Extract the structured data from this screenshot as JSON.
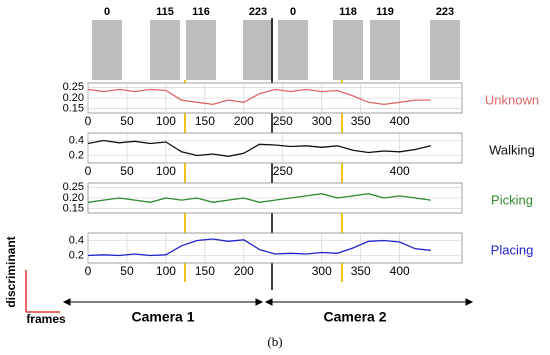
{
  "frame_numbers": [
    0,
    115,
    116,
    223,
    0,
    118,
    119,
    223
  ],
  "cameras": [
    "Camera 1",
    "Camera 2"
  ],
  "y_axis_label": "discriminant",
  "x_axis_label": "frames",
  "caption": "(b)",
  "chart_data": [
    {
      "type": "line",
      "name": "Unknown",
      "color": "#e06666",
      "x": [
        0,
        20,
        40,
        60,
        80,
        100,
        120,
        140,
        160,
        180,
        200,
        220,
        240,
        260,
        280,
        300,
        320,
        340,
        360,
        380,
        400,
        420,
        440
      ],
      "values": [
        0.24,
        0.23,
        0.24,
        0.23,
        0.24,
        0.235,
        0.19,
        0.18,
        0.17,
        0.19,
        0.18,
        0.22,
        0.24,
        0.23,
        0.24,
        0.23,
        0.235,
        0.21,
        0.18,
        0.17,
        0.18,
        0.19,
        0.19
      ],
      "xlim": [
        0,
        480
      ],
      "ylim": [
        0.13,
        0.27
      ],
      "yticks": [
        {
          "value": 0.15,
          "label": "0.15"
        },
        {
          "value": 0.2,
          "label": "0.20"
        },
        {
          "value": 0.25,
          "label": "0.25"
        }
      ],
      "xticks": [
        0,
        50,
        100,
        150,
        200,
        250,
        300,
        350,
        400
      ],
      "grid": true
    },
    {
      "type": "line",
      "name": "Walking",
      "color": "#111111",
      "x": [
        0,
        20,
        40,
        60,
        80,
        100,
        120,
        140,
        160,
        180,
        200,
        220,
        240,
        260,
        280,
        300,
        320,
        340,
        360,
        380,
        400,
        420,
        440
      ],
      "values": [
        0.36,
        0.4,
        0.37,
        0.39,
        0.36,
        0.38,
        0.25,
        0.2,
        0.22,
        0.19,
        0.23,
        0.35,
        0.34,
        0.32,
        0.33,
        0.31,
        0.33,
        0.27,
        0.24,
        0.26,
        0.25,
        0.28,
        0.33
      ],
      "xlim": [
        0,
        480
      ],
      "ylim": [
        0.1,
        0.5
      ],
      "yticks": [
        0.2,
        0.4
      ],
      "xticks": [
        0,
        50,
        100,
        250,
        400
      ],
      "grid": true
    },
    {
      "type": "line",
      "name": "Picking",
      "color": "#2e8b2e",
      "x": [
        0,
        20,
        40,
        60,
        80,
        100,
        120,
        140,
        160,
        180,
        200,
        220,
        240,
        260,
        280,
        300,
        320,
        340,
        360,
        380,
        400,
        420,
        440
      ],
      "values": [
        0.18,
        0.19,
        0.2,
        0.19,
        0.18,
        0.2,
        0.19,
        0.2,
        0.18,
        0.19,
        0.2,
        0.18,
        0.19,
        0.2,
        0.21,
        0.22,
        0.2,
        0.21,
        0.22,
        0.2,
        0.21,
        0.2,
        0.19
      ],
      "xlim": [
        0,
        480
      ],
      "ylim": [
        0.13,
        0.27
      ],
      "yticks": [
        {
          "value": 0.15,
          "label": "0.15"
        },
        {
          "value": 0.2,
          "label": "0.20"
        },
        {
          "value": 0.25,
          "label": "0.25"
        }
      ],
      "grid": true
    },
    {
      "type": "line",
      "name": "Placing",
      "color": "#2222cc",
      "x": [
        0,
        20,
        40,
        60,
        80,
        100,
        120,
        140,
        160,
        180,
        200,
        220,
        240,
        260,
        280,
        300,
        320,
        340,
        360,
        380,
        400,
        420,
        440
      ],
      "values": [
        0.2,
        0.21,
        0.2,
        0.22,
        0.2,
        0.21,
        0.33,
        0.4,
        0.42,
        0.39,
        0.41,
        0.28,
        0.22,
        0.23,
        0.22,
        0.24,
        0.23,
        0.3,
        0.39,
        0.4,
        0.38,
        0.29,
        0.27
      ],
      "xlim": [
        0,
        480
      ],
      "ylim": [
        0.1,
        0.5
      ],
      "yticks": [
        0.2,
        0.4
      ],
      "xticks": [
        0,
        50,
        100,
        150,
        200,
        300,
        350,
        400
      ],
      "grid": true
    }
  ]
}
